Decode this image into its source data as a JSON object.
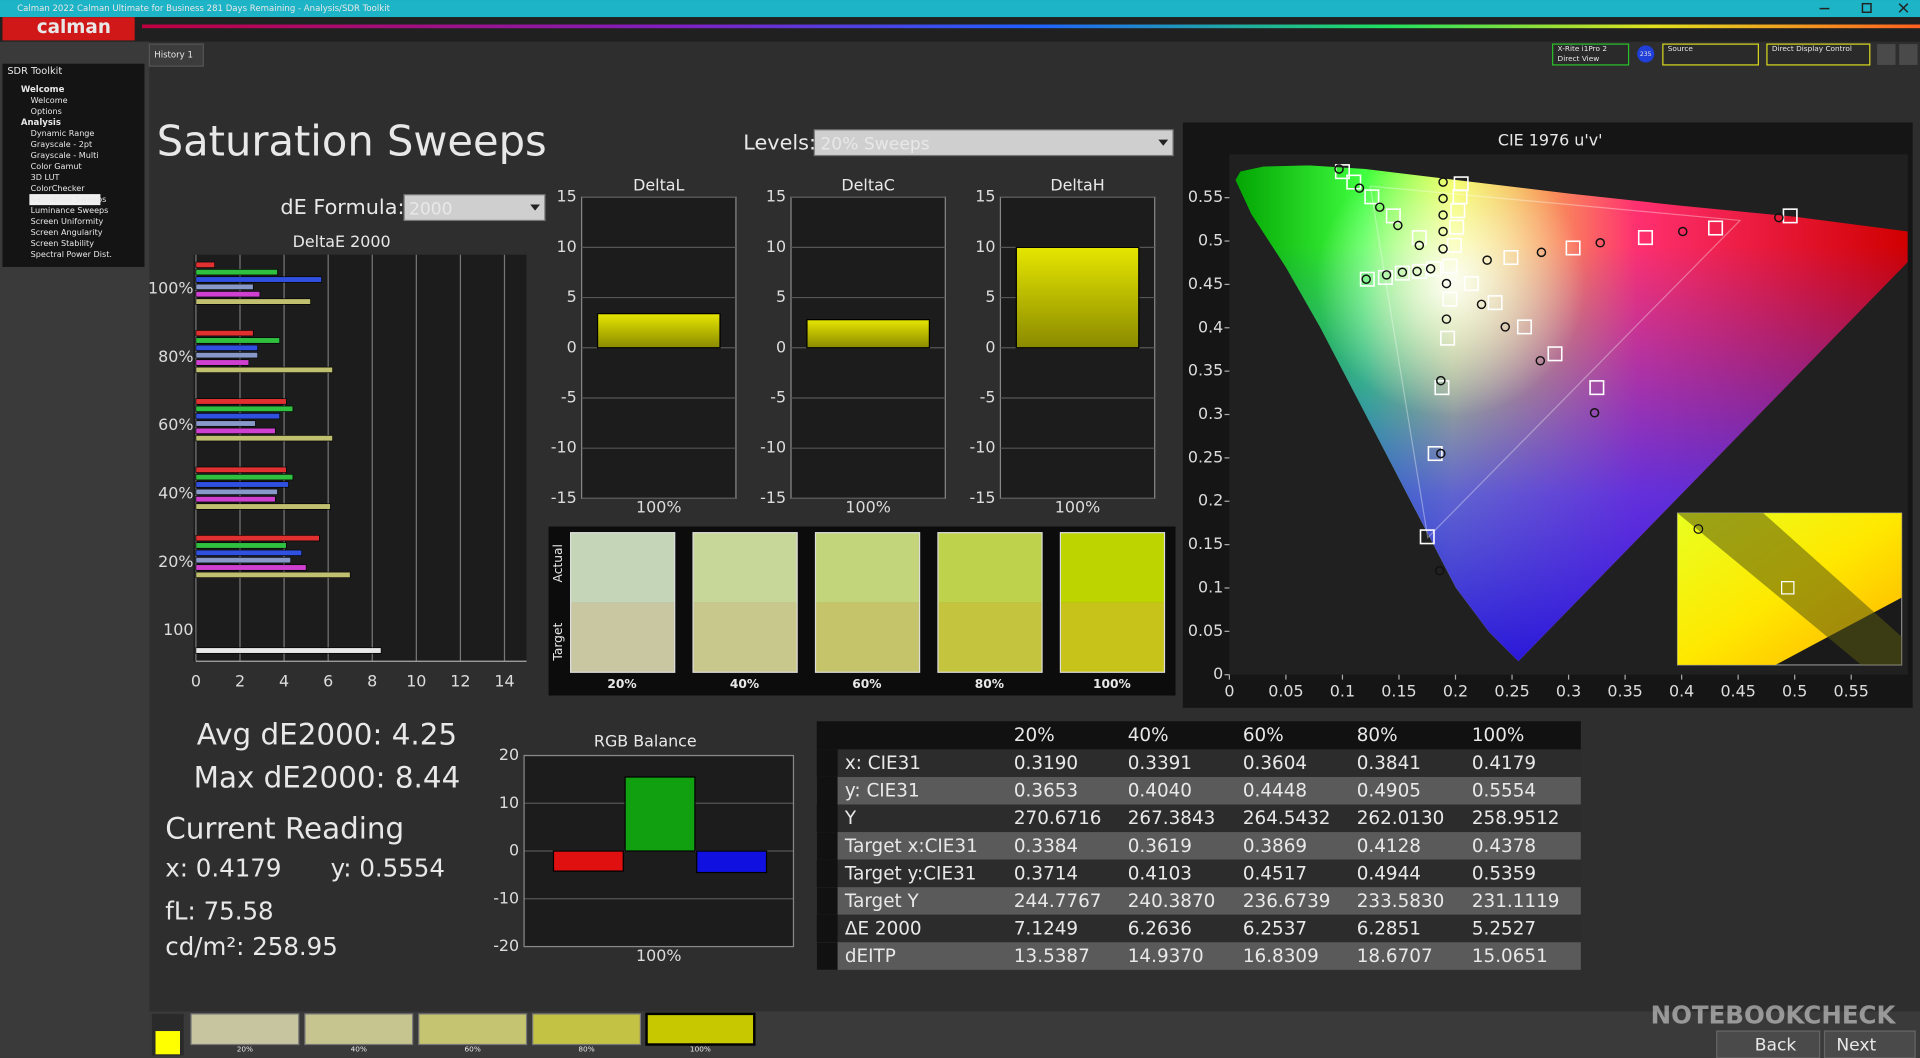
{
  "window": {
    "title": "Calman 2022 Calman Ultimate for Business 281 Days Remaining - Analysis/SDR Toolkit",
    "logo": "calman",
    "tab": "History 1"
  },
  "toolbar": {
    "meter": "X-Rite i1Pro 2",
    "meter_mode": "Direct View",
    "meter_id": "235",
    "source": "Source",
    "display": "Direct Display Control"
  },
  "sidebar": {
    "title": "SDR Toolkit",
    "groups": [
      {
        "name": "Welcome",
        "items": [
          "Welcome",
          "Options"
        ]
      },
      {
        "name": "Analysis",
        "items": [
          "Dynamic Range",
          "Grayscale - 2pt",
          "Grayscale - Multi",
          "Color Gamut",
          "3D LUT",
          "ColorChecker",
          "Saturation Sweeps",
          "Luminance Sweeps",
          "Screen Uniformity",
          "Screen Angularity",
          "Screen Stability",
          "Spectral Power Dist."
        ]
      }
    ]
  },
  "page": {
    "title": "Saturation Sweeps",
    "levels_label": "Levels:",
    "levels_value": "20% Sweeps",
    "formula_label": "dE Formula:",
    "formula_value": "2000"
  },
  "de_chart": {
    "type": "bar",
    "orientation": "horizontal",
    "title": "DeltaE 2000",
    "categories": [
      "100%",
      "80%",
      "60%",
      "40%",
      "20%",
      "100"
    ],
    "series": [
      {
        "color": "#e03030",
        "values": [
          0.85,
          2.6,
          4.1,
          4.1,
          5.6,
          null
        ]
      },
      {
        "color": "#30c040",
        "values": [
          3.7,
          3.8,
          4.4,
          4.4,
          4.1,
          null
        ]
      },
      {
        "color": "#3050e0",
        "values": [
          5.7,
          2.8,
          3.8,
          4.2,
          4.8,
          null
        ]
      },
      {
        "color": "#8898c8",
        "values": [
          2.6,
          2.8,
          2.7,
          3.7,
          4.3,
          null
        ]
      },
      {
        "color": "#d040d0",
        "values": [
          2.9,
          2.4,
          3.6,
          3.6,
          5.0,
          null
        ]
      },
      {
        "color": "#c0c070",
        "values": [
          5.2,
          6.2,
          6.2,
          6.1,
          7.0,
          null
        ]
      },
      {
        "color": "#e8e8e8",
        "values": [
          null,
          null,
          null,
          null,
          null,
          8.4
        ]
      }
    ],
    "xlim": [
      0,
      15
    ],
    "xticks": [
      0,
      2,
      4,
      6,
      8,
      10,
      12,
      14
    ],
    "grid": true
  },
  "delta_charts": [
    {
      "type": "bar",
      "title": "DeltaL",
      "categories": [
        "100%"
      ],
      "values": [
        3.4
      ],
      "color": "#c8c800",
      "ylim": [
        -15,
        15
      ],
      "yticks": [
        -15,
        -10,
        -5,
        0,
        5,
        10,
        15
      ],
      "grid": true
    },
    {
      "type": "bar",
      "title": "DeltaC",
      "categories": [
        "100%"
      ],
      "values": [
        2.8
      ],
      "color": "#c8c800",
      "ylim": [
        -15,
        15
      ],
      "yticks": [
        -15,
        -10,
        -5,
        0,
        5,
        10,
        15
      ],
      "grid": true
    },
    {
      "type": "bar",
      "title": "DeltaH",
      "categories": [
        "100%"
      ],
      "values": [
        10
      ],
      "color": "#c8c800",
      "ylim": [
        -15,
        15
      ],
      "yticks": [
        -15,
        -10,
        -5,
        0,
        5,
        10,
        15
      ],
      "grid": true
    }
  ],
  "swatches": {
    "actual_label": "Actual",
    "target_label": "Target",
    "labels": [
      "20%",
      "40%",
      "60%",
      "80%",
      "100%"
    ],
    "actual_colors": [
      "#c5d6b8",
      "#c7d79a",
      "#c2d57a",
      "#bfd24c",
      "#bdd400"
    ],
    "target_colors": [
      "#c9c7a2",
      "#c8c78c",
      "#c5c46a",
      "#c5c43e",
      "#c8c31a"
    ]
  },
  "summary": {
    "avg": "Avg dE2000: 4.25",
    "max": "Max dE2000: 8.44",
    "reading_title": "Current Reading",
    "x": "x: 0.4179",
    "y": "y: 0.5554",
    "fl": "fL: 75.58",
    "cdm2": "cd/m²: 258.95"
  },
  "rgb_balance": {
    "type": "bar",
    "title": "RGB Balance",
    "categories": [
      "100%"
    ],
    "series": [
      {
        "color": "#e01010",
        "values": [
          -4.2
        ]
      },
      {
        "color": "#10a010",
        "values": [
          15.5
        ]
      },
      {
        "color": "#1010e0",
        "values": [
          -4.5
        ]
      }
    ],
    "ylim": [
      -20,
      20
    ],
    "yticks": [
      -20,
      -10,
      0,
      10,
      20
    ],
    "grid": true
  },
  "cie": {
    "type": "scatter",
    "title": "CIE 1976 u'v'",
    "xlim": [
      0,
      0.6
    ],
    "ylim": [
      0,
      0.6
    ],
    "xticks": [
      0,
      0.05,
      0.1,
      0.15,
      0.2,
      0.25,
      0.3,
      0.35,
      0.4,
      0.45,
      0.5,
      0.55
    ],
    "yticks": [
      0,
      0.05,
      0.1,
      0.15,
      0.2,
      0.25,
      0.3,
      0.35,
      0.4,
      0.45,
      0.5,
      0.55
    ],
    "series": [
      {
        "marker": "square",
        "color": "#ffffff",
        "x": [
          0.1,
          0.11,
          0.126,
          0.145,
          0.168,
          0.205,
          0.204,
          0.202,
          0.201,
          0.199,
          0.249,
          0.304,
          0.368,
          0.43,
          0.496,
          0.214,
          0.235,
          0.261,
          0.288,
          0.325,
          0.195,
          0.193,
          0.188,
          0.182,
          0.175,
          0.122,
          0.138,
          0.153,
          0.168,
          0.181,
          0.195
        ],
        "y": [
          0.58,
          0.568,
          0.551,
          0.529,
          0.504,
          0.566,
          0.551,
          0.535,
          0.516,
          0.495,
          0.481,
          0.492,
          0.504,
          0.515,
          0.529,
          0.451,
          0.429,
          0.401,
          0.37,
          0.331,
          0.433,
          0.388,
          0.331,
          0.255,
          0.159,
          0.456,
          0.458,
          0.463,
          0.465,
          0.468,
          0.471
        ]
      },
      {
        "marker": "circle",
        "color": "#111111",
        "x": [
          0.097,
          0.115,
          0.133,
          0.149,
          0.168,
          0.189,
          0.189,
          0.189,
          0.189,
          0.189,
          0.228,
          0.276,
          0.328,
          0.401,
          0.486,
          0.223,
          0.244,
          0.275,
          0.323,
          0.192,
          0.192,
          0.187,
          0.187,
          0.186,
          0.121,
          0.139,
          0.153,
          0.166,
          0.178
        ],
        "y": [
          0.583,
          0.561,
          0.539,
          0.518,
          0.495,
          0.568,
          0.549,
          0.53,
          0.511,
          0.491,
          0.478,
          0.487,
          0.498,
          0.511,
          0.527,
          0.427,
          0.401,
          0.362,
          0.302,
          0.451,
          0.41,
          0.339,
          0.255,
          0.12,
          0.456,
          0.461,
          0.464,
          0.465,
          0.468
        ]
      }
    ]
  },
  "table": {
    "columns": [
      "20%",
      "40%",
      "60%",
      "80%",
      "100%"
    ],
    "rows": [
      {
        "label": "x: CIE31",
        "cells": [
          "0.3190",
          "0.3391",
          "0.3604",
          "0.3841",
          "0.4179"
        ]
      },
      {
        "label": "y: CIE31",
        "cells": [
          "0.3653",
          "0.4040",
          "0.4448",
          "0.4905",
          "0.5554"
        ]
      },
      {
        "label": "Y",
        "cells": [
          "270.6716",
          "267.3843",
          "264.5432",
          "262.0130",
          "258.9512"
        ]
      },
      {
        "label": "Target x:CIE31",
        "cells": [
          "0.3384",
          "0.3619",
          "0.3869",
          "0.4128",
          "0.4378"
        ]
      },
      {
        "label": "Target y:CIE31",
        "cells": [
          "0.3714",
          "0.4103",
          "0.4517",
          "0.4944",
          "0.5359"
        ]
      },
      {
        "label": "Target Y",
        "cells": [
          "244.7767",
          "240.3870",
          "236.6739",
          "233.5830",
          "231.1119"
        ]
      },
      {
        "label": "ΔE 2000",
        "cells": [
          "7.1249",
          "6.2636",
          "6.2537",
          "6.2851",
          "5.2527"
        ]
      },
      {
        "label": "dEITP",
        "cells": [
          "13.5387",
          "14.9370",
          "16.8309",
          "18.6707",
          "15.0651"
        ]
      }
    ]
  },
  "bottom_bar": {
    "labels": [
      "20%",
      "40%",
      "60%",
      "80%",
      "100%"
    ],
    "colors": [
      "#c6c5a0",
      "#c6c590",
      "#c5c470",
      "#c3c245",
      "#c8c800"
    ],
    "back": "Back",
    "next": "Next"
  },
  "watermark": "NOTEBOOKCHECK"
}
